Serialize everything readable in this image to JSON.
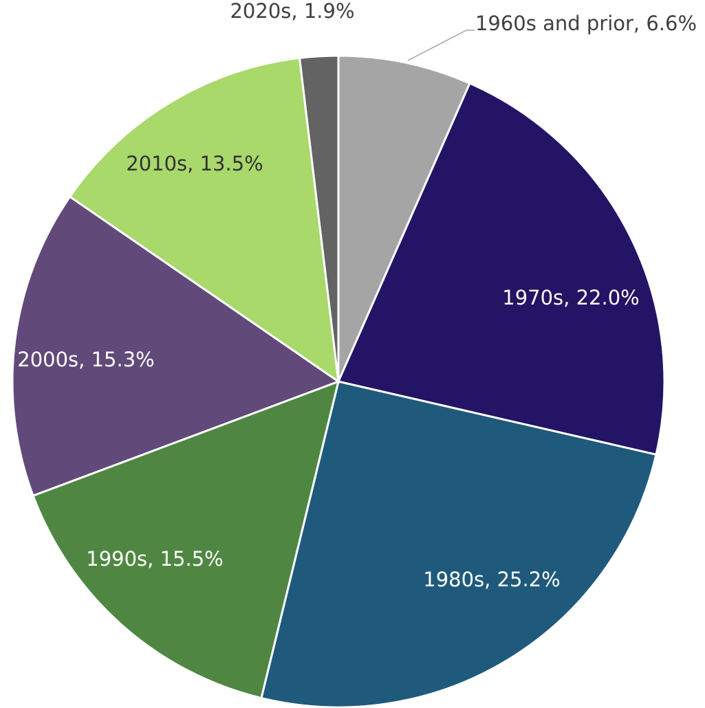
{
  "chart_data": {
    "type": "pie",
    "categories": [
      "1960s and prior",
      "1970s",
      "1980s",
      "1990s",
      "2000s",
      "2010s",
      "2020s"
    ],
    "values": [
      6.6,
      22.0,
      25.2,
      15.5,
      15.3,
      13.5,
      1.9
    ],
    "value_labels": [
      "1960s and prior, 6.6%",
      "1970s, 22.0%",
      "1980s, 25.2%",
      "1990s, 15.5%",
      "2000s, 15.3%",
      "2010s, 13.5%",
      "2020s, 1.9%"
    ],
    "colors": [
      "#a5a5a5",
      "#231465",
      "#1f5a7c",
      "#4f8742",
      "#614a7a",
      "#a9d86b",
      "#636363"
    ]
  }
}
